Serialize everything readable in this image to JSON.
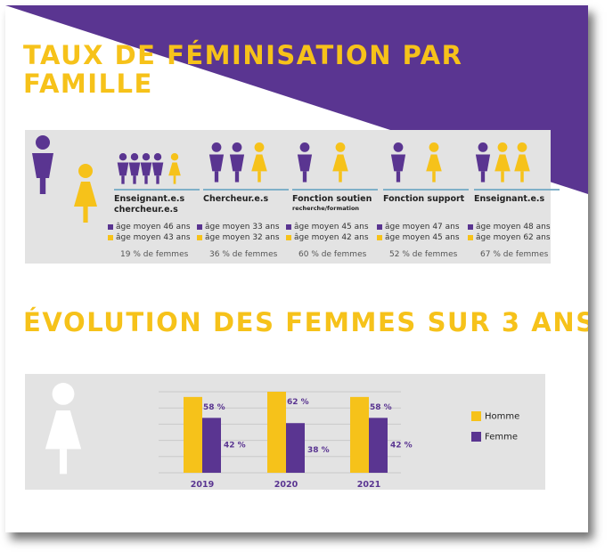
{
  "colors": {
    "purple": "#5a3591",
    "yellow": "#f6c21a",
    "band": "#e3e3e3",
    "white": "#ffffff"
  },
  "section1": {
    "title": "TAUX DE FÉMINISATION PAR FAMILLE",
    "columns": [
      {
        "title": "Enseignant.e.s chercheur.e.s",
        "subtitle": "",
        "men_age": "âge moyen 46 ans",
        "women_age": "âge moyen 43 ans",
        "pct": "19 % de femmes",
        "men_icons": 4,
        "women_icons": 1
      },
      {
        "title": "Chercheur.e.s",
        "subtitle": "",
        "men_age": "âge moyen 33 ans",
        "women_age": "âge moyen 32 ans",
        "pct": "36 % de femmes",
        "men_icons": 2,
        "women_icons": 1
      },
      {
        "title": "Fonction soutien",
        "subtitle": "recherche/formation",
        "men_age": "âge moyen 45 ans",
        "women_age": "âge moyen 42 ans",
        "pct": "60 % de femmes",
        "men_icons": 1,
        "women_icons": 1
      },
      {
        "title": "Fonction support",
        "subtitle": "",
        "men_age": "âge moyen 47 ans",
        "women_age": "âge moyen 45 ans",
        "pct": "52 % de femmes",
        "men_icons": 1,
        "women_icons": 1
      },
      {
        "title": "Enseignant.e.s",
        "subtitle": "",
        "men_age": "âge moyen 48 ans",
        "women_age": "âge moyen 62 ans",
        "pct": "67 % de femmes",
        "men_icons": 1,
        "women_icons": 2
      }
    ]
  },
  "section2": {
    "title": "ÉVOLUTION DES FEMMES SUR 3 ANS",
    "legend": [
      {
        "label": "Homme",
        "color": "#f6c21a"
      },
      {
        "label": "Femme",
        "color": "#5a3591"
      }
    ]
  },
  "chart_data": {
    "type": "bar",
    "categories": [
      "2019",
      "2020",
      "2021"
    ],
    "series": [
      {
        "name": "Homme",
        "values": [
          58,
          62,
          58
        ],
        "labels": [
          "58 %",
          "62 %",
          "58 %"
        ]
      },
      {
        "name": "Femme",
        "values": [
          42,
          38,
          42
        ],
        "labels": [
          "42 %",
          "38 %",
          "42 %"
        ]
      }
    ],
    "title": "ÉVOLUTION DES FEMMES SUR 3 ANS",
    "ylim": [
      0,
      62
    ],
    "grid": true,
    "legend_position": "right"
  }
}
